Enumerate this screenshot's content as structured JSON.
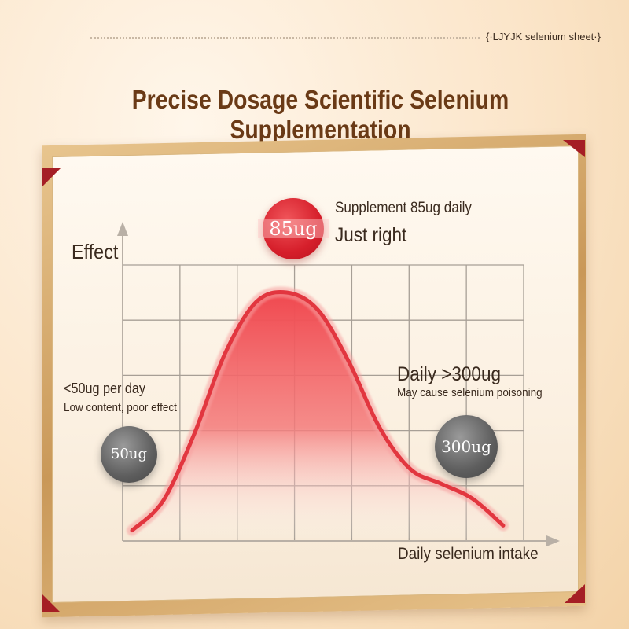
{
  "header": {
    "tag": "{·LJYJK selenium sheet·}",
    "title": "Precise Dosage Scientific Selenium Supplementation"
  },
  "chart_data": {
    "type": "area",
    "title": "",
    "xlabel": "Daily selenium intake",
    "ylabel": "Effect",
    "grid": true,
    "annotations": [
      {
        "id": "top",
        "badge": "85ug",
        "line1": "Supplement 85ug daily",
        "line2": "Just right",
        "color": "#d61f2b"
      },
      {
        "id": "left",
        "badge": "50ug",
        "line1": "<50ug per day",
        "line2": "Low content, poor effect",
        "color": "#5e5e5e"
      },
      {
        "id": "right",
        "badge": "300ug",
        "line1": "Daily >300ug",
        "line2": "May cause selenium poisoning",
        "color": "#5e5e5e"
      }
    ],
    "curve": {
      "x": [
        0,
        1,
        2,
        3,
        4,
        5,
        6,
        7,
        8,
        9,
        10,
        11,
        12
      ],
      "y": [
        0.03,
        0.15,
        0.42,
        0.75,
        0.96,
        1.0,
        0.93,
        0.72,
        0.45,
        0.28,
        0.22,
        0.16,
        0.05
      ]
    },
    "colors": {
      "curve": "#e2363f",
      "fill_top": "#f0484f",
      "grid": "#a79f96",
      "axis": "#b9b0a6"
    }
  }
}
